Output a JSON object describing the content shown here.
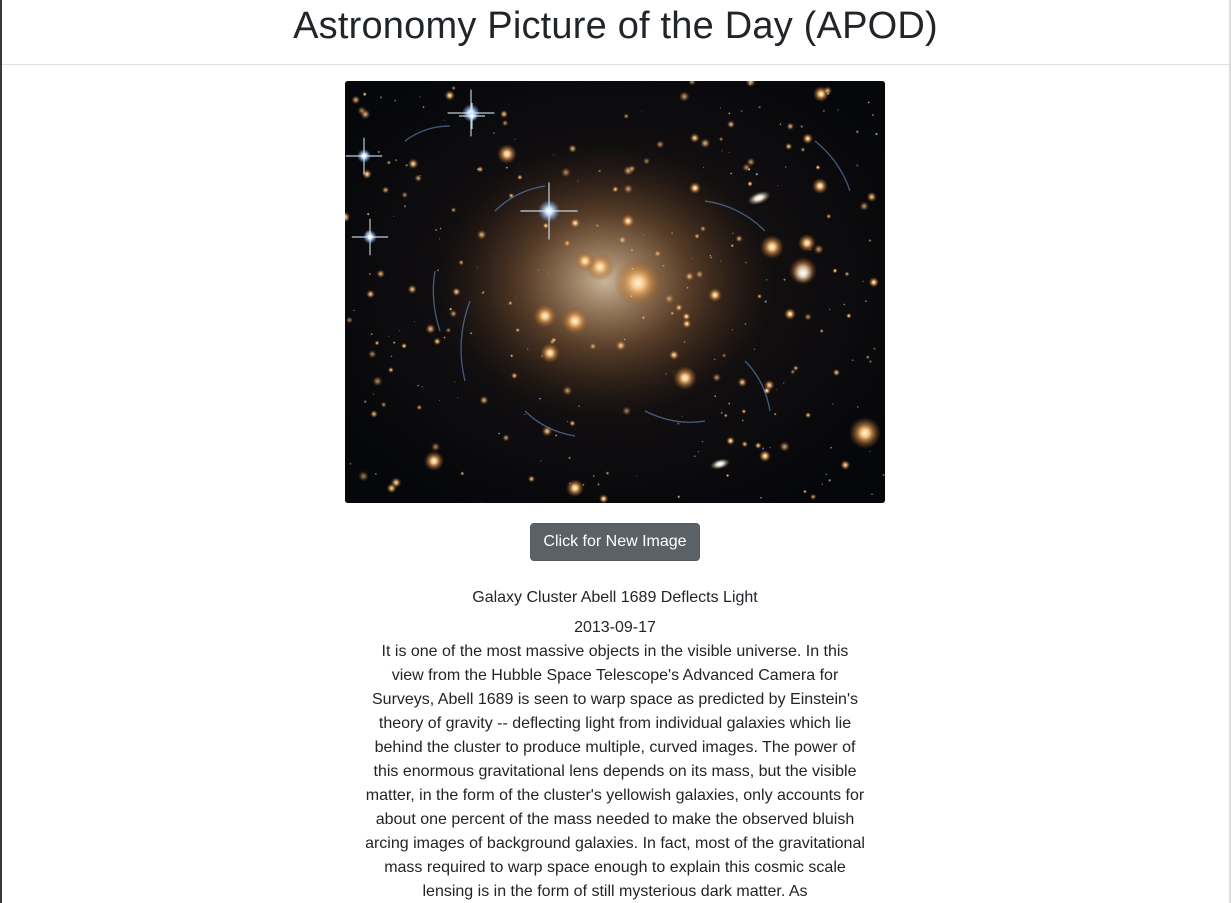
{
  "header": {
    "title": "Astronomy Picture of the Day (APOD)"
  },
  "apod": {
    "image_alt": "Galaxy Cluster Abell 1689 Deflects Light",
    "button_label": "Click for New Image",
    "title": "Galaxy Cluster Abell 1689 Deflects Light",
    "date": "2013-09-17",
    "explanation": "It is one of the most massive objects in the visible universe. In this view from the Hubble Space Telescope's Advanced Camera for Surveys, Abell 1689 is seen to warp space as predicted by Einstein's theory of gravity -- deflecting light from individual galaxies which lie behind the cluster to produce multiple, curved images. The power of this enormous gravitational lens depends on its mass, but the visible matter, in the form of the cluster's yellowish galaxies, only accounts for about one percent of the mass needed to make the observed bluish arcing images of background galaxies. In fact, most of the gravitational mass required to warp space enough to explain this cosmic scale lensing is in the form of still mysterious dark matter. As"
  },
  "colors": {
    "button_bg": "#5a6268",
    "text": "#212529",
    "space_bg": "#0a0b10"
  }
}
